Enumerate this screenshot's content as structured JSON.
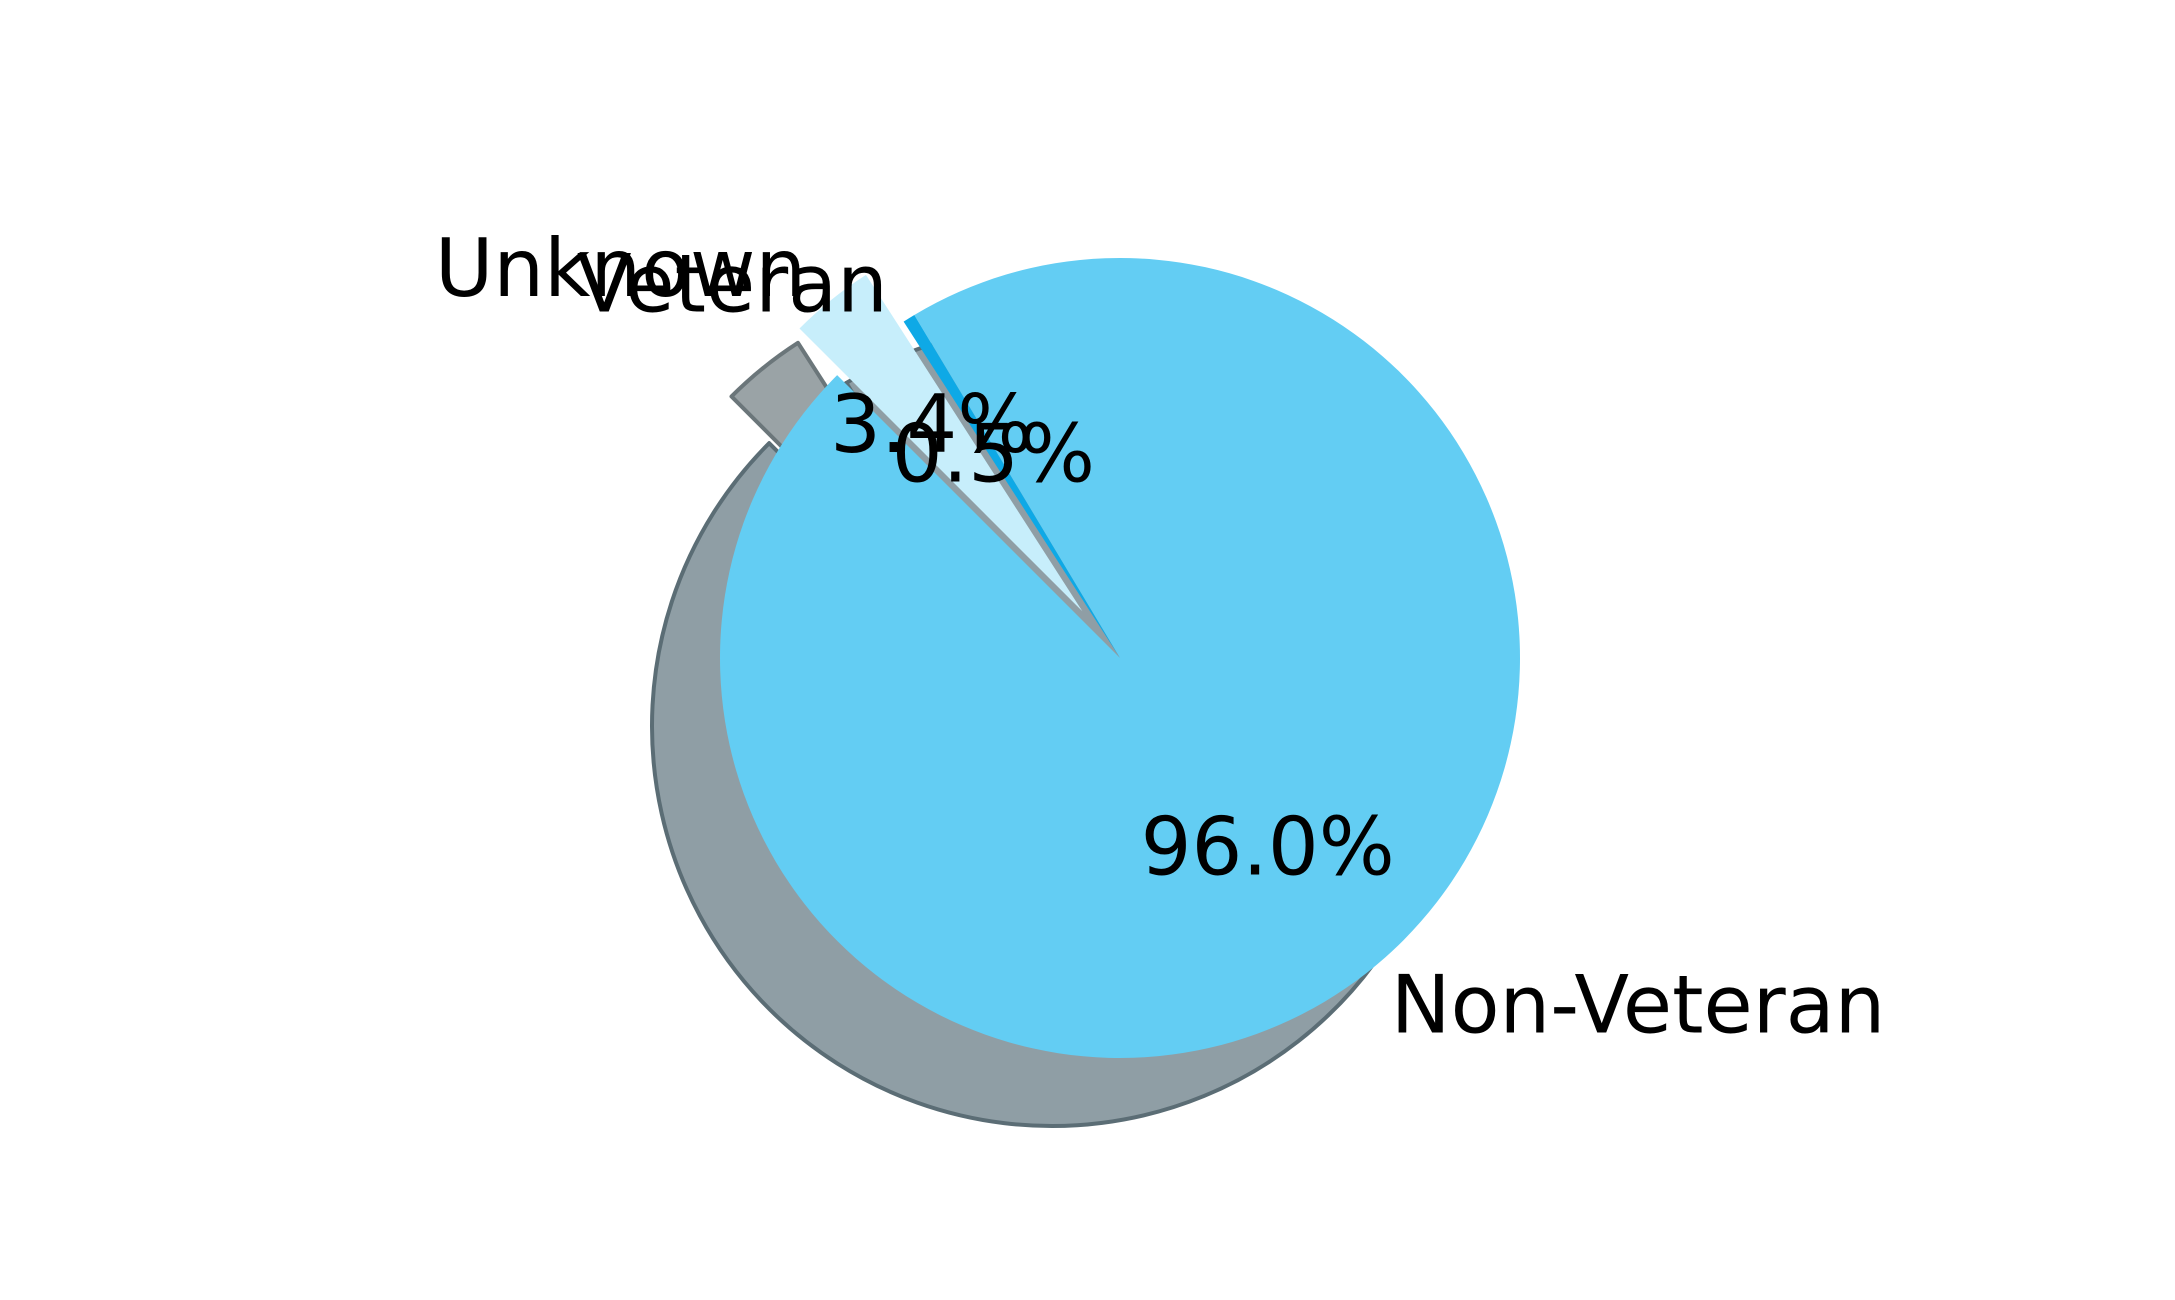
{
  "chart_data": {
    "type": "pie",
    "title": "",
    "start_angle_deg": 135,
    "direction": "counterclockwise",
    "shadow": true,
    "slices": [
      {
        "label": "Non-Veteran",
        "value": 96.0,
        "pct_label": "96.0%",
        "color": "#63cdf3",
        "exploded": false
      },
      {
        "label": "Veteran",
        "value": 0.5,
        "pct_label": "0.5%",
        "color": "#0ea9e6",
        "exploded": false
      },
      {
        "label": "Unknown",
        "value": 3.4,
        "pct_label": "3.4%",
        "color": "#c7eefb",
        "exploded": true
      }
    ],
    "colors": {
      "shadow_fill": "#8f9ea5",
      "shadow_stroke": "#5b6d75",
      "explode_shadow_fill": "#9aa3a6",
      "explode_shadow_stroke": "#6b767a"
    }
  }
}
